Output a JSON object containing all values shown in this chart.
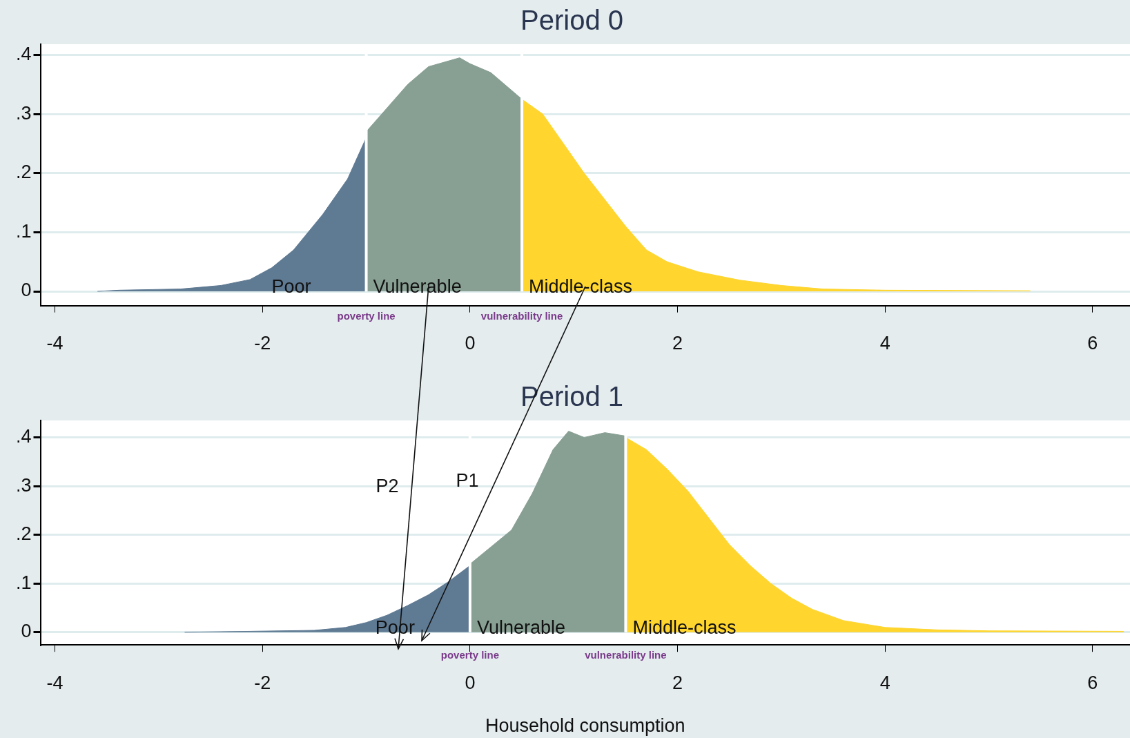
{
  "chart_data": [
    {
      "type": "area",
      "title": "Period 0",
      "xlim": [
        -4.14,
        6.36
      ],
      "ylim": [
        -0.024,
        0.418
      ],
      "xticks": [
        -4,
        -2,
        0,
        2,
        4,
        6
      ],
      "yticks": [
        0,
        {
          "value": 0.1,
          "label": ".1"
        },
        {
          "value": 0.2,
          "label": ".2"
        },
        {
          "value": 0.3,
          "label": ".3"
        },
        {
          "value": 0.4,
          "label": ".4"
        }
      ],
      "grid": "y",
      "legend": false,
      "marker": "none",
      "series": [
        {
          "name": "Poor",
          "color": "#5f7a93",
          "x": [
            -3.59,
            -3.38,
            -2.79,
            -2.4,
            -2.12,
            -1.91,
            -1.7,
            -1.42,
            -1.18,
            -1.0
          ],
          "values": [
            0,
            0.002,
            0.004,
            0.01,
            0.02,
            0.04,
            0.07,
            0.13,
            0.19,
            0.26
          ]
        },
        {
          "name": "Vulnerable",
          "color": "#889f93",
          "x": [
            -1.0,
            -0.8,
            -0.6,
            -0.4,
            -0.2,
            -0.1,
            0,
            0.2,
            0.4,
            0.5
          ],
          "values": [
            0.27,
            0.31,
            0.35,
            0.38,
            0.39,
            0.395,
            0.385,
            0.37,
            0.34,
            0.325
          ]
        },
        {
          "name": "Middle-class",
          "color": "#ffd52e",
          "x": [
            0.5,
            0.7,
            0.9,
            1.1,
            1.3,
            1.5,
            1.7,
            1.9,
            2.2,
            2.6,
            3.0,
            3.4,
            4.0,
            5.4
          ],
          "values": [
            0.325,
            0.3,
            0.25,
            0.2,
            0.155,
            0.11,
            0.07,
            0.05,
            0.033,
            0.019,
            0.01,
            0.004,
            0.002,
            0.001
          ]
        }
      ],
      "ref_lines": [
        {
          "axis": "x",
          "value": -1.0,
          "label": "poverty line",
          "color": "#ffffff"
        },
        {
          "axis": "x",
          "value": 0.5,
          "label": "vulnerability line",
          "color": "#ffffff"
        }
      ]
    },
    {
      "type": "area",
      "title": "Period 1",
      "xlabel": "Household consumption",
      "xlim": [
        -4.14,
        6.36
      ],
      "ylim": [
        -0.026,
        0.435
      ],
      "xticks": [
        -4,
        -2,
        0,
        2,
        4,
        6
      ],
      "yticks": [
        0,
        {
          "value": 0.1,
          "label": ".1"
        },
        {
          "value": 0.2,
          "label": ".2"
        },
        {
          "value": 0.3,
          "label": ".3"
        },
        {
          "value": 0.4,
          "label": ".4"
        }
      ],
      "grid": "y",
      "legend": false,
      "marker": "none",
      "series": [
        {
          "name": "Poor",
          "color": "#5f7a93",
          "x": [
            -2.75,
            -1.5,
            -1.2,
            -1.0,
            -0.8,
            -0.6,
            -0.4,
            -0.2,
            0
          ],
          "values": [
            0,
            0.004,
            0.01,
            0.02,
            0.035,
            0.055,
            0.077,
            0.105,
            0.137
          ]
        },
        {
          "name": "Vulnerable",
          "color": "#889f93",
          "x": [
            0,
            0.2,
            0.4,
            0.6,
            0.8,
            0.95,
            1.1,
            1.3,
            1.5
          ],
          "values": [
            0.14,
            0.175,
            0.21,
            0.285,
            0.375,
            0.413,
            0.4,
            0.41,
            0.403
          ]
        },
        {
          "name": "Middle-class",
          "color": "#ffd52e",
          "x": [
            1.5,
            1.7,
            1.9,
            2.1,
            2.3,
            2.5,
            2.7,
            2.9,
            3.1,
            3.3,
            3.6,
            4.0,
            4.5,
            5.0,
            6.3
          ],
          "values": [
            0.4,
            0.375,
            0.335,
            0.29,
            0.235,
            0.18,
            0.137,
            0.1,
            0.07,
            0.047,
            0.024,
            0.01,
            0.005,
            0.003,
            0.002
          ]
        }
      ],
      "ref_lines": [
        {
          "axis": "x",
          "value": 0,
          "label": "poverty line",
          "color": "#ffffff"
        },
        {
          "axis": "x",
          "value": 1.5,
          "label": "vulnerability line",
          "color": "#ffffff"
        }
      ],
      "annotations": [
        "P2",
        "P1"
      ]
    }
  ]
}
